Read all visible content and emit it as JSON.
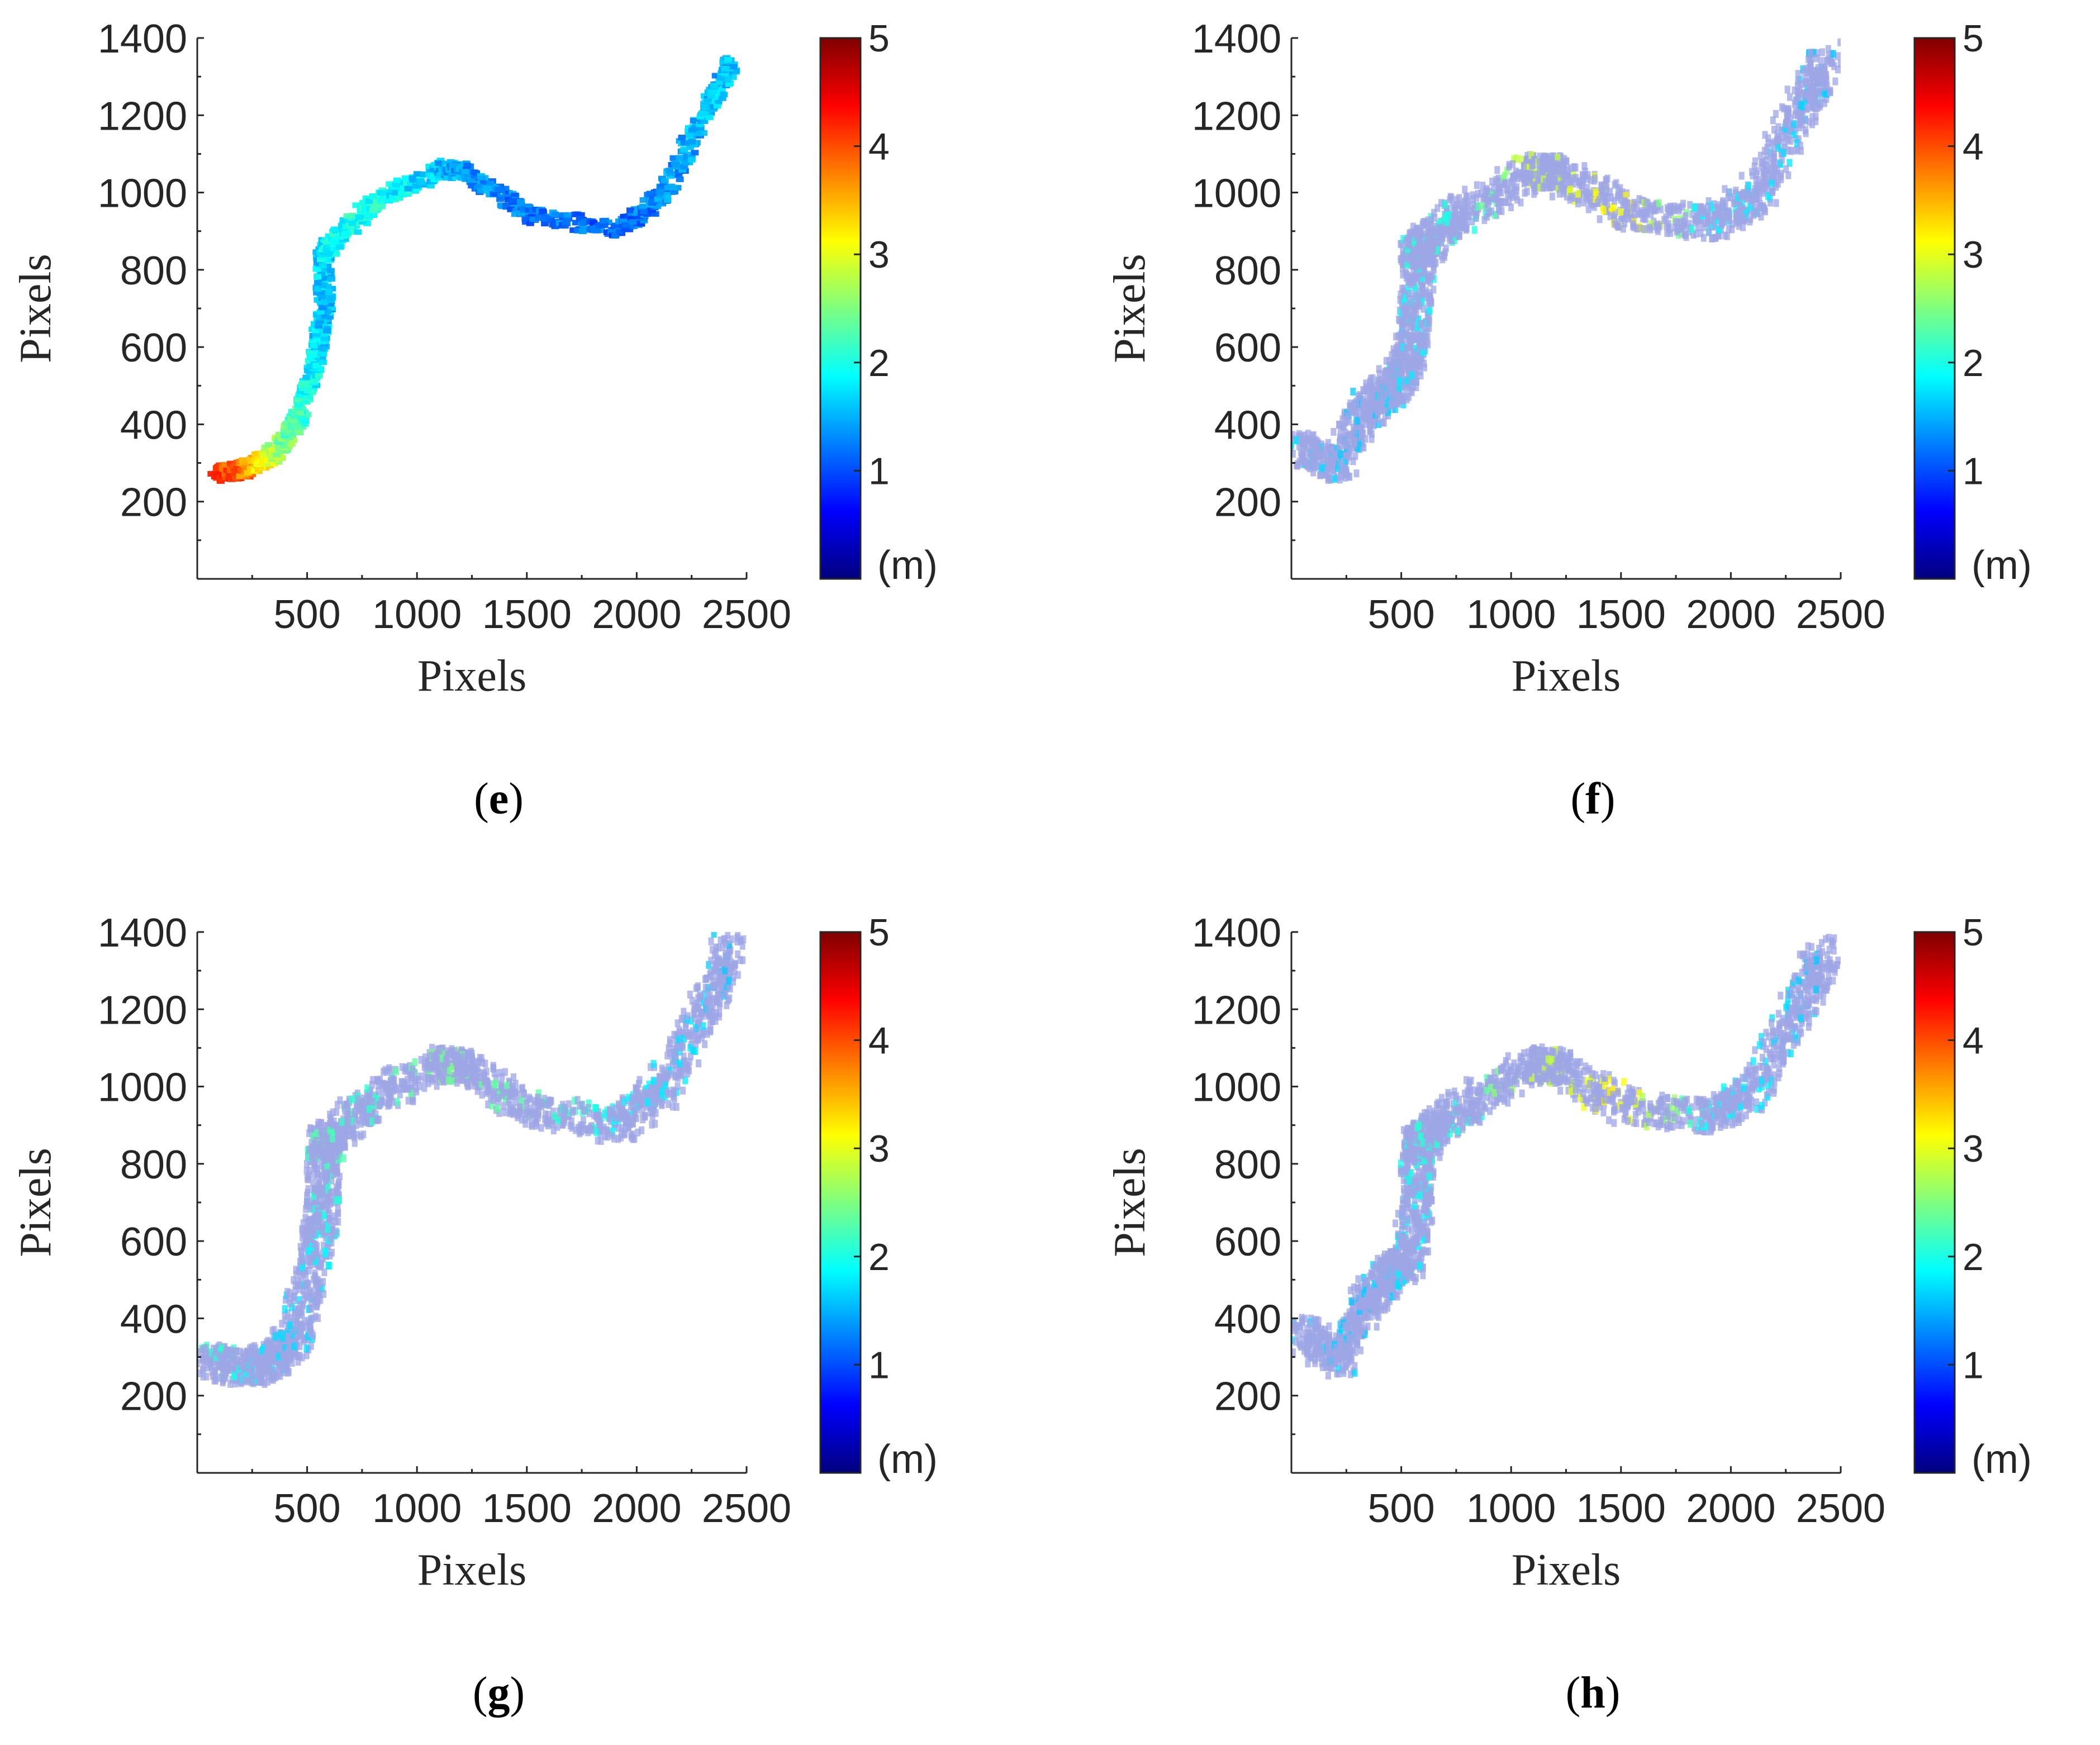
{
  "figure": {
    "colormap": {
      "name": "jet",
      "stops": [
        "#00007f",
        "#0000ff",
        "#007fff",
        "#00ffff",
        "#7fff7f",
        "#ffff00",
        "#ff7f00",
        "#ff0000",
        "#7f0000"
      ]
    },
    "background_color": "#ffffff"
  },
  "chart_data": [
    {
      "id": "e",
      "type": "heatmap",
      "caption_open": "(",
      "caption_letter": "e",
      "caption_close": ")",
      "xlabel": "Pixels",
      "ylabel": "Pixels",
      "xlim": [
        0,
        2500
      ],
      "ylim": [
        0,
        1400
      ],
      "xticks": [
        "500",
        "1000",
        "1500",
        "2000",
        "2500"
      ],
      "xtick_values": [
        500,
        1000,
        1500,
        2000,
        2500
      ],
      "yticks": [
        "200",
        "400",
        "600",
        "800",
        "1000",
        "1200",
        "1400"
      ],
      "ytick_values": [
        200,
        400,
        600,
        800,
        1000,
        1200,
        1400
      ],
      "colorbar": {
        "label": "(m)",
        "range": [
          0,
          5
        ],
        "ticks": [
          "1",
          "2",
          "3",
          "4",
          "5"
        ],
        "tick_values": [
          1,
          2,
          3,
          4,
          5
        ]
      },
      "description_style": "dense-colored",
      "river_path_x": [
        80,
        200,
        330,
        430,
        520,
        560,
        560,
        600,
        780,
        1100,
        1200,
        1500,
        1900,
        2100,
        2300,
        2420
      ],
      "river_path_y": [
        280,
        290,
        330,
        410,
        560,
        700,
        850,
        880,
        980,
        1070,
        1060,
        950,
        910,
        1000,
        1220,
        1350
      ],
      "values": [
        4.2,
        3.8,
        2.8,
        2.2,
        1.8,
        1.6,
        1.7,
        1.9,
        2.0,
        1.6,
        1.4,
        1.2,
        1.1,
        1.3,
        1.6,
        1.5
      ]
    },
    {
      "id": "f",
      "type": "heatmap",
      "caption_open": "(",
      "caption_letter": "f",
      "caption_close": ")",
      "xlabel": "Pixels",
      "ylabel": "Pixels",
      "xlim": [
        0,
        2500
      ],
      "ylim": [
        0,
        1400
      ],
      "xticks": [
        "500",
        "1000",
        "1500",
        "2000",
        "2500"
      ],
      "xtick_values": [
        500,
        1000,
        1500,
        2000,
        2500
      ],
      "yticks": [
        "200",
        "400",
        "600",
        "800",
        "1000",
        "1200",
        "1400"
      ],
      "ytick_values": [
        200,
        400,
        600,
        800,
        1000,
        1200,
        1400
      ],
      "colorbar": {
        "label": "(m)",
        "range": [
          0,
          5
        ],
        "ticks": [
          "1",
          "2",
          "3",
          "4",
          "5"
        ],
        "tick_values": [
          1,
          2,
          3,
          4,
          5
        ]
      },
      "description_style": "sparse-light",
      "river_path_x": [
        30,
        200,
        330,
        430,
        520,
        560,
        560,
        600,
        780,
        1100,
        1200,
        1500,
        1900,
        2100,
        2300,
        2420
      ],
      "river_path_y": [
        350,
        300,
        450,
        500,
        560,
        700,
        850,
        880,
        960,
        1070,
        1060,
        960,
        930,
        1000,
        1220,
        1370
      ],
      "values": [
        0.8,
        0.7,
        0.6,
        0.7,
        0.8,
        0.9,
        1.0,
        1.1,
        1.0,
        1.9,
        1.8,
        2.2,
        0.9,
        0.8,
        0.7,
        0.6
      ]
    },
    {
      "id": "g",
      "type": "heatmap",
      "caption_open": "(",
      "caption_letter": "g",
      "caption_close": ")",
      "xlabel": "Pixels",
      "ylabel": "Pixels",
      "xlim": [
        0,
        2500
      ],
      "ylim": [
        0,
        1400
      ],
      "xticks": [
        "500",
        "1000",
        "1500",
        "2000",
        "2500"
      ],
      "xtick_values": [
        500,
        1000,
        1500,
        2000,
        2500
      ],
      "yticks": [
        "200",
        "400",
        "600",
        "800",
        "1000",
        "1200",
        "1400"
      ],
      "ytick_values": [
        200,
        400,
        600,
        800,
        1000,
        1200,
        1400
      ],
      "colorbar": {
        "label": "(m)",
        "range": [
          0,
          5
        ],
        "ticks": [
          "1",
          "2",
          "3",
          "4",
          "5"
        ],
        "tick_values": [
          1,
          2,
          3,
          4,
          5
        ]
      },
      "description_style": "sparse-light",
      "river_path_x": [
        30,
        200,
        330,
        430,
        520,
        560,
        560,
        600,
        780,
        1100,
        1200,
        1500,
        1900,
        2100,
        2300,
        2420
      ],
      "river_path_y": [
        300,
        280,
        300,
        360,
        560,
        700,
        850,
        880,
        980,
        1070,
        1060,
        950,
        910,
        1000,
        1220,
        1380
      ],
      "values": [
        1.2,
        1.0,
        0.8,
        0.7,
        0.8,
        1.0,
        1.2,
        1.3,
        1.1,
        1.5,
        1.4,
        1.3,
        0.9,
        0.8,
        0.7,
        0.6
      ]
    },
    {
      "id": "h",
      "type": "heatmap",
      "caption_open": "(",
      "caption_letter": "h",
      "caption_close": ")",
      "xlabel": "Pixels",
      "ylabel": "Pixels",
      "xlim": [
        0,
        2500
      ],
      "ylim": [
        0,
        1400
      ],
      "xticks": [
        "500",
        "1000",
        "1500",
        "2000",
        "2500"
      ],
      "xtick_values": [
        500,
        1000,
        1500,
        2000,
        2500
      ],
      "yticks": [
        "200",
        "400",
        "600",
        "800",
        "1000",
        "1200",
        "1400"
      ],
      "ytick_values": [
        200,
        400,
        600,
        800,
        1000,
        1200,
        1400
      ],
      "colorbar": {
        "label": "(m)",
        "range": [
          0,
          5
        ],
        "ticks": [
          "1",
          "2",
          "3",
          "4",
          "5"
        ],
        "tick_values": [
          1,
          2,
          3,
          4,
          5
        ]
      },
      "description_style": "sparse-light",
      "river_path_x": [
        30,
        200,
        330,
        430,
        520,
        560,
        560,
        600,
        780,
        1100,
        1200,
        1500,
        1900,
        2100,
        2300,
        2420
      ],
      "river_path_y": [
        380,
        300,
        450,
        520,
        560,
        700,
        850,
        880,
        960,
        1070,
        1060,
        960,
        930,
        1000,
        1220,
        1370
      ],
      "values": [
        0.8,
        0.7,
        0.6,
        0.7,
        0.8,
        0.9,
        1.0,
        1.1,
        1.0,
        1.9,
        1.8,
        2.2,
        0.9,
        0.8,
        0.7,
        0.6
      ]
    }
  ]
}
